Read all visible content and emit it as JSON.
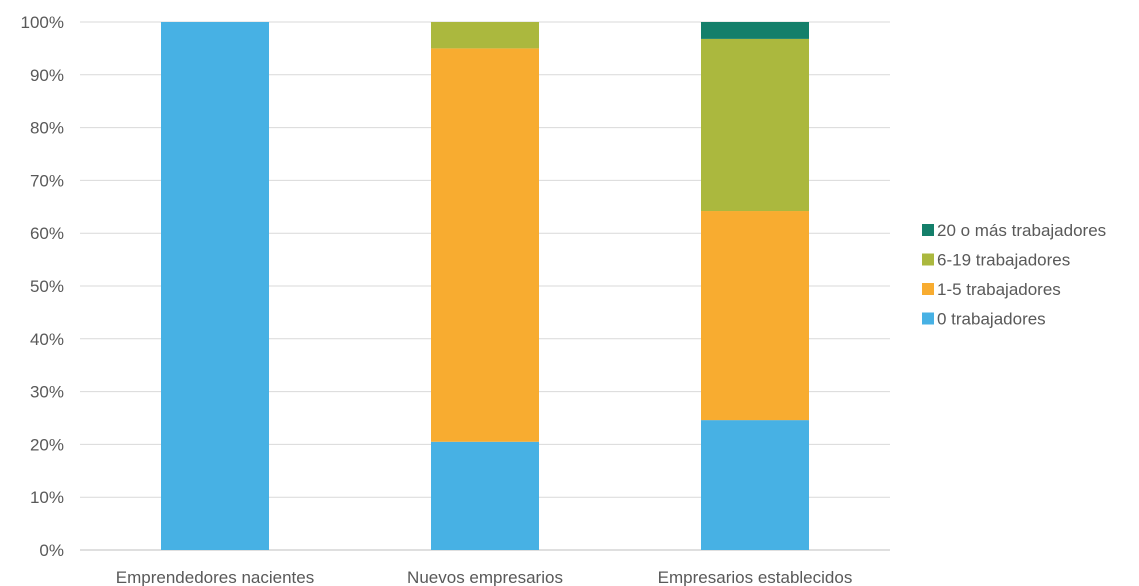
{
  "chart_data": {
    "type": "bar",
    "stacked": true,
    "normalized": true,
    "categories": [
      "Emprendedores nacientes",
      "Nuevos empresarios",
      "Empresarios establecidos"
    ],
    "series": [
      {
        "name": "0 trabajadores",
        "color": "#47B1E4",
        "values": [
          100,
          20.5,
          24.6
        ]
      },
      {
        "name": "1-5 trabajadores",
        "color": "#F8AC30",
        "values": [
          0,
          74.5,
          39.6
        ]
      },
      {
        "name": "6-19 trabajadores",
        "color": "#ABB83E",
        "values": [
          0,
          5.0,
          32.6
        ]
      },
      {
        "name": "20 o más trabajadores",
        "color": "#147F6A",
        "values": [
          0,
          0,
          3.2
        ]
      }
    ],
    "ylim": [
      0,
      100
    ],
    "yticks": [
      0,
      10,
      20,
      30,
      40,
      50,
      60,
      70,
      80,
      90,
      100
    ],
    "ytick_labels": [
      "0%",
      "10%",
      "20%",
      "30%",
      "40%",
      "50%",
      "60%",
      "70%",
      "80%",
      "90%",
      "100%"
    ],
    "grid": true,
    "legend_position": "right",
    "legend_order": [
      "20 o más trabajadores",
      "6-19 trabajadores",
      "1-5 trabajadores",
      "0 trabajadores"
    ],
    "title": "",
    "xlabel": "",
    "ylabel": ""
  }
}
